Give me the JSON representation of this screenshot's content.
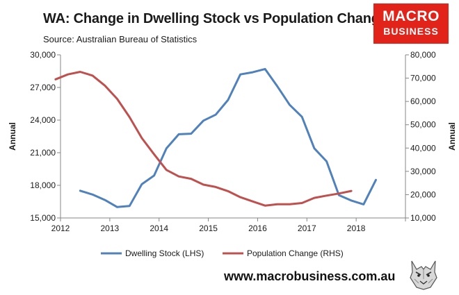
{
  "header": {
    "title": "WA: Change in Dwelling Stock vs Population Change",
    "subtitle": "Source: Australian Bureau of Statistics"
  },
  "logo": {
    "line1": "MACRO",
    "line2": "BUSINESS"
  },
  "footer": {
    "url": "www.macrobusiness.com.au"
  },
  "chart_data": {
    "type": "line",
    "grid": false,
    "legend_position": "bottom",
    "x_axis": {
      "ticks": [
        "2012",
        "2013",
        "2014",
        "2015",
        "2016",
        "2017",
        "2018"
      ],
      "range": [
        2012,
        2019
      ]
    },
    "y_left": {
      "label": "Annual",
      "range": [
        15000,
        30000
      ],
      "ticks": [
        15000,
        18000,
        21000,
        24000,
        27000,
        30000
      ],
      "tick_labels": [
        "15,000",
        "18,000",
        "21,000",
        "24,000",
        "27,000",
        "30,000"
      ]
    },
    "y_right": {
      "label": "Annual",
      "range": [
        10000,
        80000
      ],
      "ticks": [
        10000,
        20000,
        30000,
        40000,
        50000,
        60000,
        70000,
        80000
      ],
      "tick_labels": [
        "10,000",
        "20,000",
        "30,000",
        "40,000",
        "50,000",
        "60,000",
        "70,000",
        "80,000"
      ]
    },
    "series": [
      {
        "name": "Dwelling Stock (LHS)",
        "axis": "left",
        "color": "#4f81bd",
        "x": [
          2012.4,
          2012.65,
          2012.9,
          2013.15,
          2013.4,
          2013.65,
          2013.9,
          2014.15,
          2014.4,
          2014.65,
          2014.9,
          2015.15,
          2015.4,
          2015.65,
          2015.9,
          2016.15,
          2016.4,
          2016.65,
          2016.9,
          2017.15,
          2017.4,
          2017.65,
          2017.9,
          2018.15,
          2018.4
        ],
        "values": [
          17500,
          17150,
          16650,
          16000,
          16100,
          18100,
          18900,
          21400,
          22700,
          22750,
          23950,
          24500,
          25850,
          28200,
          28400,
          28700,
          27100,
          25400,
          24300,
          21400,
          20200,
          17100,
          16600,
          16250,
          18500
        ]
      },
      {
        "name": "Population Change (RHS)",
        "axis": "right",
        "color": "#c0504d",
        "x": [
          2011.9,
          2012.15,
          2012.4,
          2012.65,
          2012.9,
          2013.15,
          2013.4,
          2013.65,
          2013.9,
          2014.15,
          2014.4,
          2014.65,
          2014.9,
          2015.15,
          2015.4,
          2015.65,
          2015.9,
          2016.15,
          2016.4,
          2016.65,
          2016.9,
          2017.15,
          2017.4,
          2017.65,
          2017.9
        ],
        "values": [
          69500,
          71600,
          72700,
          71100,
          66800,
          61100,
          53300,
          44300,
          37300,
          30600,
          27800,
          26800,
          24300,
          23300,
          21500,
          18900,
          17100,
          15300,
          15900,
          15900,
          16400,
          18600,
          19600,
          20500,
          21600
        ]
      }
    ]
  }
}
